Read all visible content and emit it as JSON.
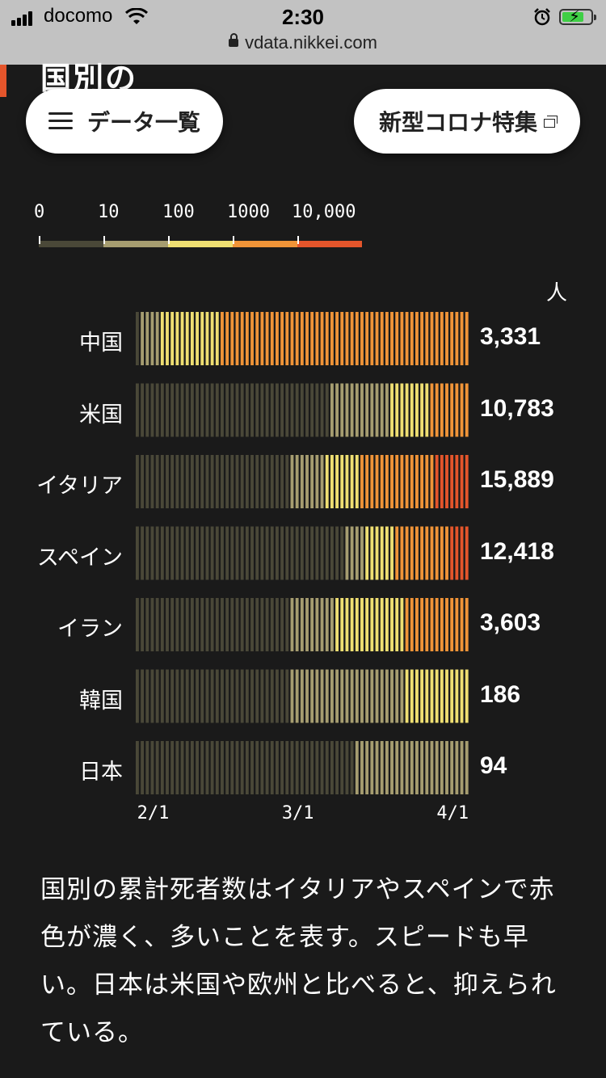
{
  "status_bar": {
    "carrier": "docomo",
    "time": "2:30",
    "url": "vdata.nikkei.com"
  },
  "header": {
    "section_title": "国別の",
    "menu_button_label": "データ一覧",
    "special_button_label": "新型コロナ特集"
  },
  "legend": {
    "labels": [
      "0",
      "10",
      "100",
      "1000",
      "10,000"
    ],
    "colors": [
      "#4a4838",
      "#a69d70",
      "#efdf72",
      "#f09438",
      "#e4552b"
    ]
  },
  "chart_data": {
    "type": "heatmap",
    "unit_label": "人",
    "x_tick_labels": [
      "2/1",
      "3/1",
      "4/1"
    ],
    "color_scale": {
      "breaks": [
        0,
        10,
        100,
        1000,
        10000
      ],
      "colors": [
        "#4a4838",
        "#a69d70",
        "#efdf72",
        "#f09438",
        "#e4552b"
      ]
    },
    "rows": [
      {
        "country": "中国",
        "total": "3,331",
        "segments": [
          {
            "bin": 0,
            "days": 1
          },
          {
            "bin": 1,
            "days": 4
          },
          {
            "bin": 2,
            "days": 12
          },
          {
            "bin": 3,
            "days": 50
          }
        ]
      },
      {
        "country": "米国",
        "total": "10,783",
        "segments": [
          {
            "bin": 0,
            "days": 39
          },
          {
            "bin": 1,
            "days": 12
          },
          {
            "bin": 2,
            "days": 8
          },
          {
            "bin": 3,
            "days": 8
          }
        ]
      },
      {
        "country": "イタリア",
        "total": "15,889",
        "segments": [
          {
            "bin": 0,
            "days": 31
          },
          {
            "bin": 1,
            "days": 7
          },
          {
            "bin": 2,
            "days": 7
          },
          {
            "bin": 3,
            "days": 15
          },
          {
            "bin": 4,
            "days": 7
          }
        ]
      },
      {
        "country": "スペイン",
        "total": "12,418",
        "segments": [
          {
            "bin": 0,
            "days": 42
          },
          {
            "bin": 1,
            "days": 4
          },
          {
            "bin": 2,
            "days": 6
          },
          {
            "bin": 3,
            "days": 11
          },
          {
            "bin": 4,
            "days": 4
          }
        ]
      },
      {
        "country": "イラン",
        "total": "3,603",
        "segments": [
          {
            "bin": 0,
            "days": 31
          },
          {
            "bin": 1,
            "days": 9
          },
          {
            "bin": 2,
            "days": 14
          },
          {
            "bin": 3,
            "days": 13
          }
        ]
      },
      {
        "country": "韓国",
        "total": "186",
        "segments": [
          {
            "bin": 0,
            "days": 31
          },
          {
            "bin": 1,
            "days": 23
          },
          {
            "bin": 2,
            "days": 13
          }
        ]
      },
      {
        "country": "日本",
        "total": "94",
        "segments": [
          {
            "bin": 0,
            "days": 44
          },
          {
            "bin": 1,
            "days": 23
          }
        ]
      }
    ]
  },
  "body": {
    "text": "国別の累計死者数はイタリアやスペインで赤色が濃く、多いことを表す。スピードも早い。日本は米国や欧州と比べると、抑えられている。"
  }
}
